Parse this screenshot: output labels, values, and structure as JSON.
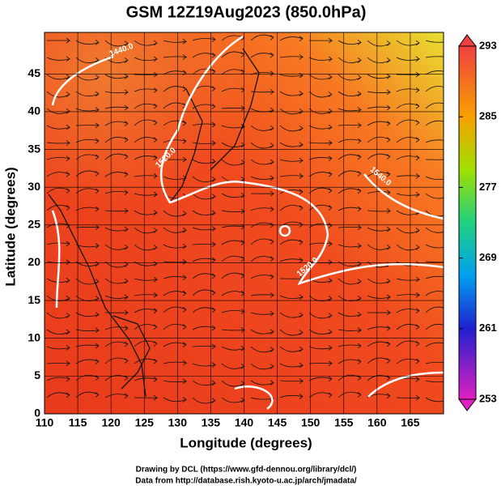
{
  "header": {
    "title": "GSM 12Z19Aug2023 (850.0hPa)"
  },
  "map": {
    "x_label": "Longitude (degrees)",
    "y_label": "Latitude  (degrees)",
    "xlim": [
      110,
      170
    ],
    "ylim": [
      0,
      50.5
    ],
    "xticks": [
      110,
      115,
      120,
      125,
      130,
      135,
      140,
      145,
      150,
      155,
      160,
      165
    ],
    "yticks": [
      0,
      5,
      10,
      15,
      20,
      25,
      30,
      35,
      40,
      45
    ],
    "contour_labels": [
      "1440.0",
      "1520.0",
      "1540.0",
      "1520.0"
    ]
  },
  "colorbar": {
    "lim": [
      253,
      293
    ],
    "ticks": [
      253,
      261,
      269,
      277,
      285,
      293
    ]
  },
  "footer": {
    "line1": "Drawing by DCL (https://www.gfd-dennou.org/library/dcl/)",
    "line2": "Data from http://database.rish.kyoto-u.ac.jp/arch/jmadata/"
  }
}
